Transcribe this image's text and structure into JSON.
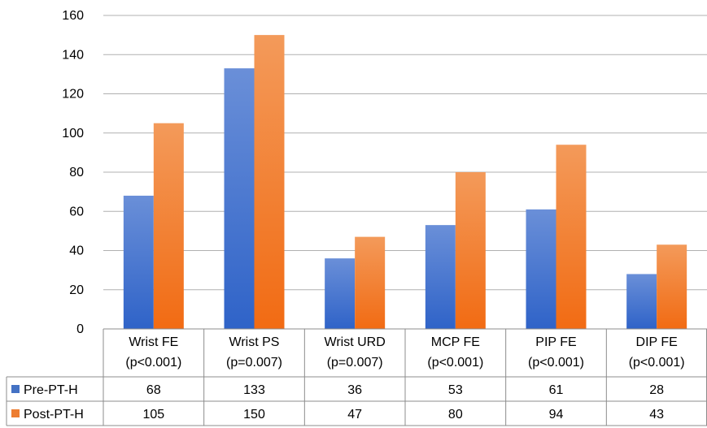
{
  "chart_data": {
    "type": "bar",
    "categories": [
      [
        "Wrist FE",
        "(p<0.001)"
      ],
      [
        "Wrist PS",
        "(p=0.007)"
      ],
      [
        "Wrist URD",
        "(p=0.007)"
      ],
      [
        "MCP FE",
        "(p<0.001)"
      ],
      [
        "PIP FE",
        "(p<0.001)"
      ],
      [
        "DIP FE",
        "(p<0.001)"
      ]
    ],
    "series": [
      {
        "name": "Pre-PT-H",
        "values": [
          68,
          133,
          36,
          53,
          61,
          28
        ],
        "color": "#4472C4"
      },
      {
        "name": "Post-PT-H",
        "values": [
          105,
          150,
          47,
          80,
          94,
          43
        ],
        "color": "#ED7D31"
      }
    ],
    "ylim": [
      0,
      160
    ],
    "yticks": [
      0,
      20,
      40,
      60,
      80,
      100,
      120,
      140,
      160
    ],
    "grid": true,
    "legend": "data-table-left",
    "title": "",
    "xlabel": "",
    "ylabel": ""
  }
}
